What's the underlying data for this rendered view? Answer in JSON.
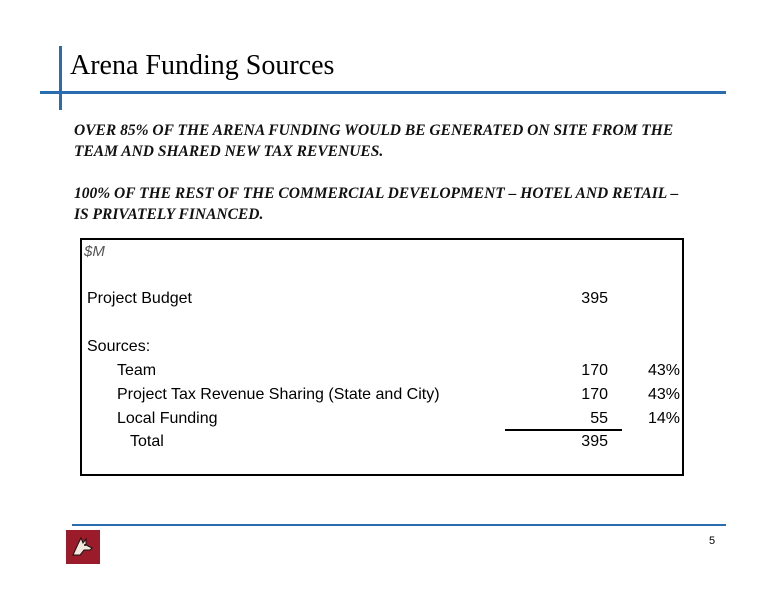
{
  "slide": {
    "title": "Arena Funding Sources",
    "paragraph1": "OVER 85% OF THE ARENA FUNDING WOULD BE GENERATED ON SITE FROM THE TEAM AND SHARED NEW TAX REVENUES.",
    "paragraph2": "100% OF THE REST OF THE COMMERCIAL DEVELOPMENT – HOTEL AND RETAIL – IS PRIVATELY FINANCED.",
    "page_number": "5",
    "accent_color": "#2a6cb0",
    "logo_color": "#9b1b2a",
    "logo_icon": "coyote-head-icon"
  },
  "table": {
    "unit": "$M",
    "budget_label": "Project Budget",
    "budget_value": "395",
    "sources_label": "Sources:",
    "rows": [
      {
        "label": "Team",
        "value": "170",
        "pct": "43%"
      },
      {
        "label": "Project Tax Revenue Sharing (State and City)",
        "value": "170",
        "pct": "43%"
      },
      {
        "label": "Local Funding",
        "value": "55",
        "pct": "14%"
      }
    ],
    "total_label": "Total",
    "total_value": "395"
  }
}
